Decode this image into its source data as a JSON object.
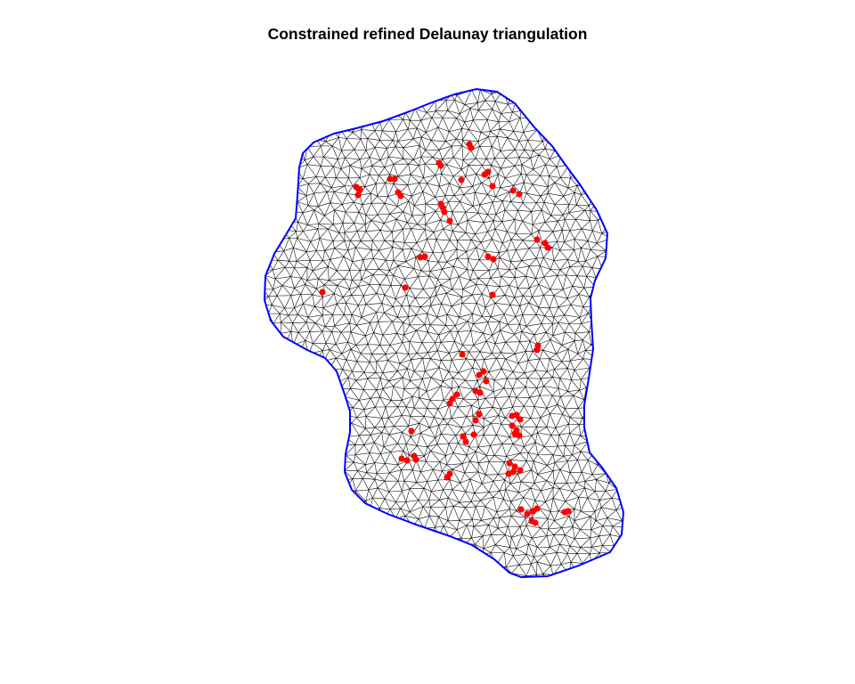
{
  "title": "Constrained refined Delaunay triangulation",
  "colors": {
    "boundary": "#0000ff",
    "mesh_edges": "#000000",
    "observed_points": "#ff0000",
    "background": "#ffffff"
  },
  "mesh": {
    "boundary_polygon_shown": true,
    "triangulation_edges_shown": true,
    "point_marker": "filled-circle"
  }
}
